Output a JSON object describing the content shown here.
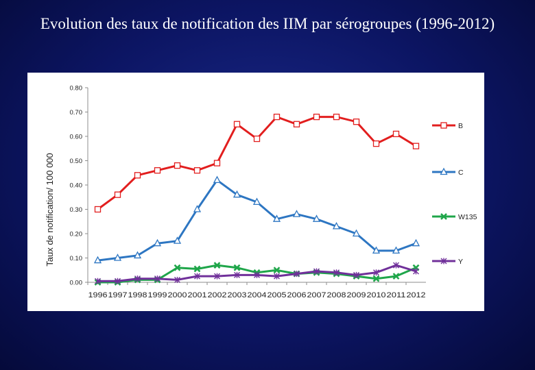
{
  "slide": {
    "title": "Evolution des taux de notification des IIM par sérogroupes (1996-2012)"
  },
  "colors": {
    "background": "#0c1563",
    "B": "#e21e1e",
    "C": "#2d76c2",
    "W135": "#1fa64a",
    "Y": "#70309a"
  },
  "chart_data": {
    "type": "line",
    "title": "",
    "xlabel": "",
    "ylabel": "Taux de notification/ 100 000",
    "ylim": [
      0,
      0.8
    ],
    "yticks": [
      "0.00",
      "0.10",
      "0.20",
      "0.30",
      "0.40",
      "0.50",
      "0.60",
      "0.70",
      "0.80"
    ],
    "grid": false,
    "legend_position": "right",
    "x": [
      "1996",
      "1997",
      "1998",
      "1999",
      "2000",
      "2001",
      "2002",
      "2003",
      "2004",
      "2005",
      "2006",
      "2007",
      "2008",
      "2009",
      "2010",
      "2011",
      "2012"
    ],
    "series": [
      {
        "name": "B",
        "marker": "square",
        "values": [
          0.3,
          0.36,
          0.44,
          0.46,
          0.48,
          0.46,
          0.49,
          0.65,
          0.59,
          0.68,
          0.65,
          0.68,
          0.68,
          0.66,
          0.57,
          0.61,
          0.56
        ]
      },
      {
        "name": "C",
        "marker": "triangle",
        "values": [
          0.09,
          0.1,
          0.11,
          0.16,
          0.17,
          0.3,
          0.42,
          0.36,
          0.33,
          0.26,
          0.28,
          0.26,
          0.23,
          0.2,
          0.13,
          0.13,
          0.16
        ]
      },
      {
        "name": "W135",
        "marker": "x",
        "values": [
          0.0,
          0.0,
          0.01,
          0.01,
          0.06,
          0.055,
          0.07,
          0.06,
          0.04,
          0.05,
          0.035,
          0.04,
          0.035,
          0.025,
          0.015,
          0.025,
          0.06
        ]
      },
      {
        "name": "Y",
        "marker": "star",
        "values": [
          0.005,
          0.005,
          0.015,
          0.015,
          0.01,
          0.025,
          0.025,
          0.03,
          0.03,
          0.025,
          0.035,
          0.045,
          0.04,
          0.03,
          0.04,
          0.07,
          0.045
        ]
      }
    ]
  }
}
